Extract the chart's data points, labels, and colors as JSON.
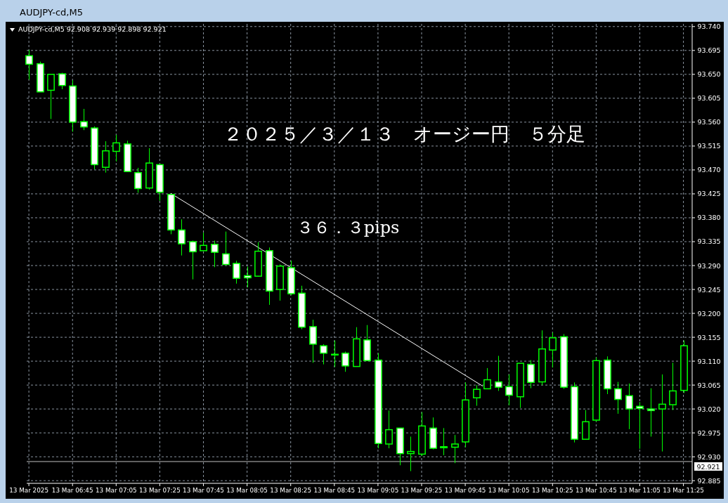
{
  "chart_data": {
    "type": "candlestick",
    "title": "AUDJPY-cd,M5",
    "subtitle": "AUDJPY-cd,M5  92.908 92.939 92.898 92.921",
    "annotations": [
      "２０２５／３／１３　オージー円　５分足",
      "３６．３pips"
    ],
    "series": [
      {
        "type": "candlestick",
        "color": "#00ff00",
        "x": [
          "2025-03-13T06:25",
          "2025-03-13T06:30",
          "2025-03-13T06:35",
          "2025-03-13T06:40",
          "2025-03-13T06:45",
          "2025-03-13T06:50",
          "2025-03-13T06:55",
          "2025-03-13T07:00",
          "2025-03-13T07:05",
          "2025-03-13T07:10",
          "2025-03-13T07:15",
          "2025-03-13T07:20",
          "2025-03-13T07:25",
          "2025-03-13T07:30",
          "2025-03-13T07:35",
          "2025-03-13T07:40",
          "2025-03-13T07:45",
          "2025-03-13T07:50",
          "2025-03-13T07:55",
          "2025-03-13T08:00",
          "2025-03-13T08:05",
          "2025-03-13T08:10",
          "2025-03-13T08:15",
          "2025-03-13T08:20",
          "2025-03-13T08:25",
          "2025-03-13T08:30",
          "2025-03-13T08:35",
          "2025-03-13T08:40",
          "2025-03-13T08:45",
          "2025-03-13T08:50",
          "2025-03-13T08:55",
          "2025-03-13T09:00",
          "2025-03-13T09:05",
          "2025-03-13T09:10",
          "2025-03-13T09:15",
          "2025-03-13T09:20",
          "2025-03-13T09:25",
          "2025-03-13T09:30",
          "2025-03-13T09:35",
          "2025-03-13T09:40",
          "2025-03-13T09:45",
          "2025-03-13T09:50",
          "2025-03-13T09:55",
          "2025-03-13T10:00",
          "2025-03-13T10:05",
          "2025-03-13T10:10",
          "2025-03-13T10:15",
          "2025-03-13T10:20",
          "2025-03-13T10:25",
          "2025-03-13T10:30",
          "2025-03-13T10:35",
          "2025-03-13T10:40",
          "2025-03-13T10:45",
          "2025-03-13T10:50",
          "2025-03-13T10:55",
          "2025-03-13T11:00",
          "2025-03-13T11:05",
          "2025-03-13T11:10",
          "2025-03-13T11:15",
          "2025-03-13T11:20",
          "2025-03-13T11:25"
        ],
        "ohlc": [
          [
            93.685,
            93.696,
            93.64,
            93.669
          ],
          [
            93.67,
            93.674,
            93.617,
            93.617
          ],
          [
            93.62,
            93.65,
            93.566,
            93.65
          ],
          [
            93.651,
            93.653,
            93.622,
            93.629
          ],
          [
            93.628,
            93.639,
            93.542,
            93.56
          ],
          [
            93.561,
            93.585,
            93.545,
            93.551
          ],
          [
            93.549,
            93.552,
            93.471,
            93.48
          ],
          [
            93.475,
            93.524,
            93.465,
            93.506
          ],
          [
            93.505,
            93.536,
            93.486,
            93.521
          ],
          [
            93.519,
            93.525,
            93.467,
            93.467
          ],
          [
            93.465,
            93.474,
            93.427,
            93.435
          ],
          [
            93.436,
            93.511,
            93.433,
            93.483
          ],
          [
            93.48,
            93.48,
            93.412,
            93.428
          ],
          [
            93.424,
            93.424,
            93.349,
            93.357
          ],
          [
            93.357,
            93.377,
            93.309,
            93.331
          ],
          [
            93.335,
            93.337,
            93.264,
            93.316
          ],
          [
            93.318,
            93.352,
            93.318,
            93.328
          ],
          [
            93.33,
            93.337,
            93.287,
            93.315
          ],
          [
            93.312,
            93.354,
            93.291,
            93.292
          ],
          [
            93.294,
            93.299,
            93.256,
            93.266
          ],
          [
            93.271,
            93.288,
            93.249,
            93.267
          ],
          [
            93.27,
            93.334,
            93.269,
            93.317
          ],
          [
            93.318,
            93.324,
            93.216,
            93.242
          ],
          [
            93.245,
            93.292,
            93.224,
            93.289
          ],
          [
            93.286,
            93.299,
            93.234,
            93.237
          ],
          [
            93.238,
            93.252,
            93.17,
            93.174
          ],
          [
            93.175,
            93.188,
            93.107,
            93.142
          ],
          [
            93.139,
            93.142,
            93.104,
            93.125
          ],
          [
            93.123,
            93.149,
            93.099,
            93.123
          ],
          [
            93.125,
            93.128,
            93.09,
            93.101
          ],
          [
            93.1,
            93.174,
            93.1,
            93.152
          ],
          [
            93.15,
            93.178,
            93.111,
            93.111
          ],
          [
            93.112,
            93.125,
            92.946,
            92.955
          ],
          [
            92.954,
            93.017,
            92.946,
            92.981
          ],
          [
            92.984,
            92.984,
            92.914,
            92.936
          ],
          [
            92.936,
            92.968,
            92.903,
            92.94
          ],
          [
            92.935,
            93.014,
            92.931,
            92.988
          ],
          [
            92.984,
            93.004,
            92.944,
            92.946
          ],
          [
            92.949,
            92.984,
            92.933,
            92.947
          ],
          [
            92.948,
            92.971,
            92.918,
            92.954
          ],
          [
            92.958,
            93.07,
            92.948,
            93.037
          ],
          [
            93.041,
            93.065,
            93.026,
            93.057
          ],
          [
            93.058,
            93.097,
            93.058,
            93.075
          ],
          [
            93.071,
            93.12,
            93.054,
            93.061
          ],
          [
            93.062,
            93.085,
            93.027,
            93.046
          ],
          [
            93.043,
            93.106,
            93.022,
            93.106
          ],
          [
            93.104,
            93.112,
            93.059,
            93.07
          ],
          [
            93.071,
            93.168,
            93.065,
            93.133
          ],
          [
            93.131,
            93.164,
            93.098,
            93.154
          ],
          [
            93.156,
            93.161,
            93.058,
            93.061
          ],
          [
            93.062,
            93.07,
            92.957,
            92.963
          ],
          [
            92.963,
            93.018,
            92.963,
            92.996
          ],
          [
            92.999,
            93.117,
            92.996,
            93.111
          ],
          [
            93.112,
            93.119,
            93.048,
            93.058
          ],
          [
            93.058,
            93.071,
            93.011,
            93.038
          ],
          [
            93.045,
            93.068,
            92.982,
            93.02
          ],
          [
            93.025,
            93.033,
            92.945,
            93.021
          ],
          [
            93.02,
            93.059,
            92.968,
            93.017
          ],
          [
            93.02,
            93.085,
            92.94,
            93.029
          ],
          [
            93.028,
            93.107,
            93.018,
            93.054
          ],
          [
            93.055,
            93.149,
            93.05,
            93.139
          ]
        ]
      },
      {
        "type": "line",
        "color": "#ffffff",
        "x": [
          "2025-03-13T07:30",
          "2025-03-13T09:53"
        ],
        "values": [
          93.426,
          93.063
        ]
      }
    ],
    "xlim": [
      "2025-03-13T06:24",
      "2025-03-13T11:29"
    ],
    "xticks": [
      {
        "value": "2025-03-13T06:25",
        "label": "13 Mar 2025"
      },
      {
        "value": "2025-03-13T06:45",
        "label": "13 Mar 06:45"
      },
      {
        "value": "2025-03-13T07:05",
        "label": "13 Mar 07:05"
      },
      {
        "value": "2025-03-13T07:25",
        "label": "13 Mar 07:25"
      },
      {
        "value": "2025-03-13T07:45",
        "label": "13 Mar 07:45"
      },
      {
        "value": "2025-03-13T08:05",
        "label": "13 Mar 08:05"
      },
      {
        "value": "2025-03-13T08:25",
        "label": "13 Mar 08:25"
      },
      {
        "value": "2025-03-13T08:45",
        "label": "13 Mar 08:45"
      },
      {
        "value": "2025-03-13T09:05",
        "label": "13 Mar 09:05"
      },
      {
        "value": "2025-03-13T09:25",
        "label": "13 Mar 09:25"
      },
      {
        "value": "2025-03-13T09:45",
        "label": "13 Mar 09:45"
      },
      {
        "value": "2025-03-13T10:05",
        "label": "13 Mar 10:05"
      },
      {
        "value": "2025-03-13T10:25",
        "label": "13 Mar 10:25"
      },
      {
        "value": "2025-03-13T10:45",
        "label": "13 Mar 10:45"
      },
      {
        "value": "2025-03-13T11:05",
        "label": "13 Mar 11:05"
      },
      {
        "value": "2025-03-13T11:25",
        "label": "13 Mar 11:25"
      }
    ],
    "ylim": [
      92.88,
      93.745
    ],
    "yticks": [
      {
        "value": 92.885,
        "label": "92.885"
      },
      {
        "value": 92.93,
        "label": "92.930"
      },
      {
        "value": 92.975,
        "label": "92.975"
      },
      {
        "value": 93.02,
        "label": "93.020"
      },
      {
        "value": 93.065,
        "label": "93.065"
      },
      {
        "value": 93.11,
        "label": "93.110"
      },
      {
        "value": 93.155,
        "label": "93.155"
      },
      {
        "value": 93.2,
        "label": "93.200"
      },
      {
        "value": 93.245,
        "label": "93.245"
      },
      {
        "value": 93.29,
        "label": "93.290"
      },
      {
        "value": 93.335,
        "label": "93.335"
      },
      {
        "value": 93.38,
        "label": "93.380"
      },
      {
        "value": 93.425,
        "label": "93.425"
      },
      {
        "value": 93.47,
        "label": "93.470"
      },
      {
        "value": 93.515,
        "label": "93.515"
      },
      {
        "value": 93.56,
        "label": "93.560"
      },
      {
        "value": 93.605,
        "label": "93.605"
      },
      {
        "value": 93.65,
        "label": "93.650"
      },
      {
        "value": 93.695,
        "label": "93.695"
      },
      {
        "value": 93.74,
        "label": "93.740"
      }
    ],
    "ref_lines": [
      {
        "axis": "y",
        "value": 92.921,
        "label": "92.921",
        "color": "#c0c0c0"
      }
    ],
    "grid": true
  }
}
